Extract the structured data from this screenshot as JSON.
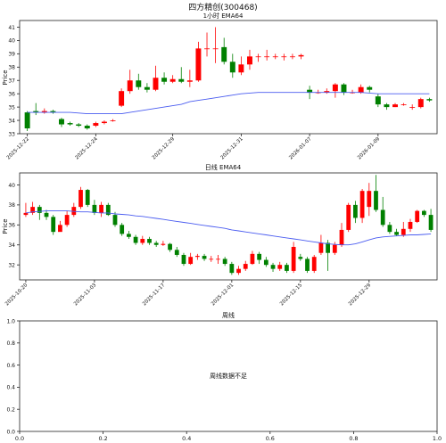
{
  "figure_title": "四方精创(300468)",
  "chart_data": [
    {
      "type": "candlestick",
      "title": "1小时 EMA64",
      "ylabel": "Price",
      "ylim": [
        33,
        41.5
      ],
      "yticks": [
        33,
        34,
        35,
        36,
        37,
        38,
        39,
        40,
        41
      ],
      "xticks": [
        {
          "i": 0,
          "label": "2025-12-22"
        },
        {
          "i": 8,
          "label": "2025-12-24"
        },
        {
          "i": 17,
          "label": "2025-12-29"
        },
        {
          "i": 25,
          "label": "2025-12-31"
        },
        {
          "i": 33,
          "label": "2026-01-07"
        },
        {
          "i": 41,
          "label": "2026-01-09"
        }
      ],
      "x_count": 48,
      "candles": [
        [
          34.6,
          33.4,
          34.7,
          33.2
        ],
        [
          34.7,
          34.6,
          35.3,
          34.4
        ],
        [
          34.6,
          34.7,
          34.9,
          34.5
        ],
        [
          34.7,
          34.6,
          34.8,
          34.5
        ],
        [
          34.1,
          33.7,
          34.2,
          33.5
        ],
        [
          33.8,
          33.7,
          33.9,
          33.6
        ],
        [
          33.7,
          33.6,
          33.8,
          33.5
        ],
        [
          33.6,
          33.4,
          33.7,
          33.3
        ],
        [
          33.6,
          33.8,
          33.9,
          33.5
        ],
        [
          33.8,
          33.9,
          34.0,
          33.7
        ],
        [
          34.0,
          34.0,
          34.1,
          33.9
        ],
        [
          35.1,
          36.2,
          36.4,
          35.0
        ],
        [
          36.2,
          37.0,
          37.8,
          36.0
        ],
        [
          37.0,
          36.5,
          37.5,
          36.3
        ],
        [
          36.5,
          36.3,
          36.8,
          36.1
        ],
        [
          36.3,
          37.2,
          38.1,
          36.2
        ],
        [
          37.2,
          36.9,
          37.6,
          36.7
        ],
        [
          36.9,
          37.1,
          37.4,
          36.8
        ],
        [
          37.1,
          36.9,
          38.0,
          36.8
        ],
        [
          36.9,
          37.0,
          37.8,
          36.5
        ],
        [
          37.0,
          39.4,
          39.9,
          36.9
        ],
        [
          39.4,
          39.4,
          40.6,
          38.8
        ],
        [
          39.4,
          39.4,
          41.0,
          38.3
        ],
        [
          39.5,
          38.4,
          40.2,
          38.2
        ],
        [
          38.4,
          37.6,
          39.0,
          37.2
        ],
        [
          37.6,
          38.2,
          38.8,
          37.4
        ],
        [
          38.2,
          38.8,
          39.3,
          37.8
        ],
        [
          38.8,
          38.8,
          39.0,
          38.4
        ],
        [
          38.8,
          38.8,
          39.3,
          38.5
        ],
        [
          38.8,
          38.8,
          39.0,
          38.6
        ],
        [
          38.8,
          38.8,
          39.0,
          38.5
        ],
        [
          38.8,
          38.8,
          39.0,
          38.6
        ],
        [
          38.8,
          38.9,
          39.0,
          38.6
        ],
        [
          36.3,
          36.1,
          36.6,
          35.6
        ],
        [
          36.1,
          36.1,
          36.3,
          36.0
        ],
        [
          36.1,
          36.2,
          36.4,
          36.0
        ],
        [
          36.2,
          36.7,
          36.8,
          35.7
        ],
        [
          36.7,
          36.1,
          36.8,
          35.9
        ],
        [
          36.1,
          36.1,
          36.3,
          36.0
        ],
        [
          36.1,
          36.5,
          36.7,
          36.0
        ],
        [
          36.5,
          36.3,
          36.6,
          36.1
        ],
        [
          35.8,
          35.2,
          36.0,
          35.0
        ],
        [
          35.2,
          35.0,
          35.3,
          34.8
        ],
        [
          35.0,
          35.2,
          35.3,
          35.0
        ],
        [
          35.2,
          35.2,
          35.3,
          35.1
        ],
        [
          35.0,
          35.0,
          35.2,
          34.8
        ],
        [
          35.0,
          35.6,
          35.7,
          34.9
        ],
        [
          35.6,
          35.5,
          35.7,
          35.4
        ]
      ],
      "ema_label": "EMA64",
      "ema": [
        34.6,
        34.6,
        34.6,
        34.6,
        34.6,
        34.6,
        34.55,
        34.5,
        34.5,
        34.5,
        34.5,
        34.5,
        34.6,
        34.7,
        34.8,
        34.9,
        35.0,
        35.1,
        35.2,
        35.4,
        35.5,
        35.6,
        35.7,
        35.8,
        35.9,
        36.0,
        36.05,
        36.1,
        36.1,
        36.1,
        36.1,
        36.1,
        36.1,
        36.1,
        36.1,
        36.1,
        36.1,
        36.1,
        36.1,
        36.1,
        36.05,
        36.0,
        36.0,
        36.0,
        36.0,
        36.0,
        36.0,
        36.0
      ]
    },
    {
      "type": "candlestick",
      "title": "日线 EMA64",
      "ylabel": "Price",
      "ylim": [
        30.5,
        41.2
      ],
      "yticks": [
        32,
        34,
        36,
        38,
        40
      ],
      "xticks": [
        {
          "i": 0,
          "label": "2025-10-20"
        },
        {
          "i": 10,
          "label": "2025-11-03"
        },
        {
          "i": 20,
          "label": "2025-11-17"
        },
        {
          "i": 30,
          "label": "2025-12-01"
        },
        {
          "i": 40,
          "label": "2025-12-15"
        },
        {
          "i": 50,
          "label": "2025-12-29"
        }
      ],
      "x_count": 60,
      "candles": [
        [
          37.0,
          37.2,
          38.2,
          36.8
        ],
        [
          37.2,
          37.8,
          38.3,
          37.0
        ],
        [
          37.8,
          37.2,
          38.0,
          36.5
        ],
        [
          37.2,
          36.8,
          37.5,
          36.5
        ],
        [
          36.8,
          35.3,
          37.0,
          35.0
        ],
        [
          35.3,
          36.0,
          36.4,
          35.5
        ],
        [
          36.0,
          37.0,
          37.4,
          35.8
        ],
        [
          37.0,
          37.8,
          38.2,
          36.8
        ],
        [
          37.8,
          39.5,
          39.8,
          37.6
        ],
        [
          39.5,
          38.0,
          39.6,
          37.8
        ],
        [
          38.0,
          37.2,
          38.5,
          37.0
        ],
        [
          37.2,
          38.0,
          38.3,
          36.8
        ],
        [
          38.0,
          37.0,
          38.2,
          36.9
        ],
        [
          37.0,
          36.0,
          37.3,
          35.8
        ],
        [
          36.0,
          35.1,
          36.2,
          34.9
        ],
        [
          35.1,
          34.8,
          35.4,
          34.6
        ],
        [
          34.8,
          34.2,
          35.0,
          34.0
        ],
        [
          34.2,
          34.6,
          34.9,
          34.0
        ],
        [
          34.6,
          34.2,
          34.8,
          34.0
        ],
        [
          34.2,
          34.0,
          34.4,
          33.8
        ],
        [
          34.0,
          34.1,
          34.4,
          33.9
        ],
        [
          34.1,
          33.5,
          34.2,
          33.3
        ],
        [
          33.5,
          33.0,
          33.8,
          32.8
        ],
        [
          33.0,
          32.1,
          33.2,
          31.9
        ],
        [
          32.1,
          32.8,
          33.2,
          32.0
        ],
        [
          32.8,
          32.9,
          33.1,
          32.5
        ],
        [
          32.9,
          32.6,
          33.1,
          32.4
        ],
        [
          32.6,
          32.6,
          32.9,
          32.3
        ],
        [
          32.6,
          32.6,
          33.0,
          32.1
        ],
        [
          32.6,
          32.1,
          32.8,
          31.9
        ],
        [
          32.1,
          31.2,
          32.3,
          31.0
        ],
        [
          31.2,
          31.6,
          31.9,
          31.0
        ],
        [
          31.6,
          32.1,
          32.4,
          31.4
        ],
        [
          32.1,
          33.1,
          33.4,
          32.0
        ],
        [
          33.1,
          32.5,
          33.3,
          32.1
        ],
        [
          32.5,
          32.0,
          32.8,
          31.8
        ],
        [
          32.0,
          31.6,
          32.2,
          31.3
        ],
        [
          31.6,
          32.0,
          32.3,
          31.4
        ],
        [
          32.0,
          31.4,
          32.2,
          31.2
        ],
        [
          31.4,
          33.8,
          34.3,
          31.2
        ],
        [
          32.8,
          32.6,
          33.1,
          32.4
        ],
        [
          32.6,
          31.4,
          32.8,
          31.2
        ],
        [
          31.4,
          32.8,
          33.0,
          31.2
        ],
        [
          33.2,
          34.2,
          35.0,
          33.0
        ],
        [
          34.2,
          33.2,
          34.5,
          31.4
        ],
        [
          33.2,
          34.0,
          34.3,
          33.0
        ],
        [
          34.0,
          35.5,
          36.2,
          33.8
        ],
        [
          35.5,
          38.0,
          38.2,
          35.3
        ],
        [
          38.0,
          36.7,
          38.4,
          36.2
        ],
        [
          36.7,
          39.4,
          39.6,
          36.2
        ],
        [
          37.8,
          39.4,
          40.2,
          36.9
        ],
        [
          39.4,
          37.5,
          41.0,
          37.3
        ],
        [
          37.5,
          36.0,
          38.8,
          35.8
        ],
        [
          36.0,
          35.3,
          36.3,
          35.1
        ],
        [
          35.3,
          35.0,
          35.6,
          34.9
        ],
        [
          35.0,
          35.6,
          36.3,
          34.8
        ],
        [
          35.6,
          36.3,
          36.6,
          35.3
        ],
        [
          36.3,
          37.4,
          37.5,
          36.2
        ],
        [
          37.4,
          37.0,
          37.5,
          36.8
        ],
        [
          37.0,
          35.5,
          37.6,
          35.3
        ]
      ],
      "ema_label": "EMA64",
      "ema": [
        37.2,
        37.3,
        37.35,
        37.4,
        37.4,
        37.4,
        37.4,
        37.35,
        37.3,
        37.3,
        37.25,
        37.2,
        37.2,
        37.1,
        37.05,
        37.0,
        36.9,
        36.85,
        36.75,
        36.65,
        36.55,
        36.45,
        36.35,
        36.25,
        36.15,
        36.05,
        35.95,
        35.85,
        35.75,
        35.65,
        35.5,
        35.4,
        35.3,
        35.2,
        35.1,
        35.0,
        34.9,
        34.8,
        34.7,
        34.6,
        34.5,
        34.4,
        34.3,
        34.2,
        34.1,
        34.05,
        34.0,
        34.0,
        34.1,
        34.3,
        34.5,
        34.7,
        34.8,
        34.85,
        34.9,
        34.95,
        35.0,
        35.0,
        35.05,
        35.1
      ]
    },
    {
      "type": "empty",
      "title": "周线",
      "message": "周线数据不足",
      "xlim": [
        0.0,
        1.0
      ],
      "ylim": [
        0.0,
        1.0
      ],
      "xticks": [
        "0.0",
        "0.2",
        "0.4",
        "0.6",
        "0.8",
        "1.0"
      ],
      "yticks": [
        "0.0",
        "0.2",
        "0.4",
        "0.6",
        "0.8",
        "1.0"
      ]
    }
  ],
  "colors": {
    "up": "#ff0000",
    "down": "#008000",
    "ema": "#4a5cf0",
    "axis": "#222222"
  }
}
